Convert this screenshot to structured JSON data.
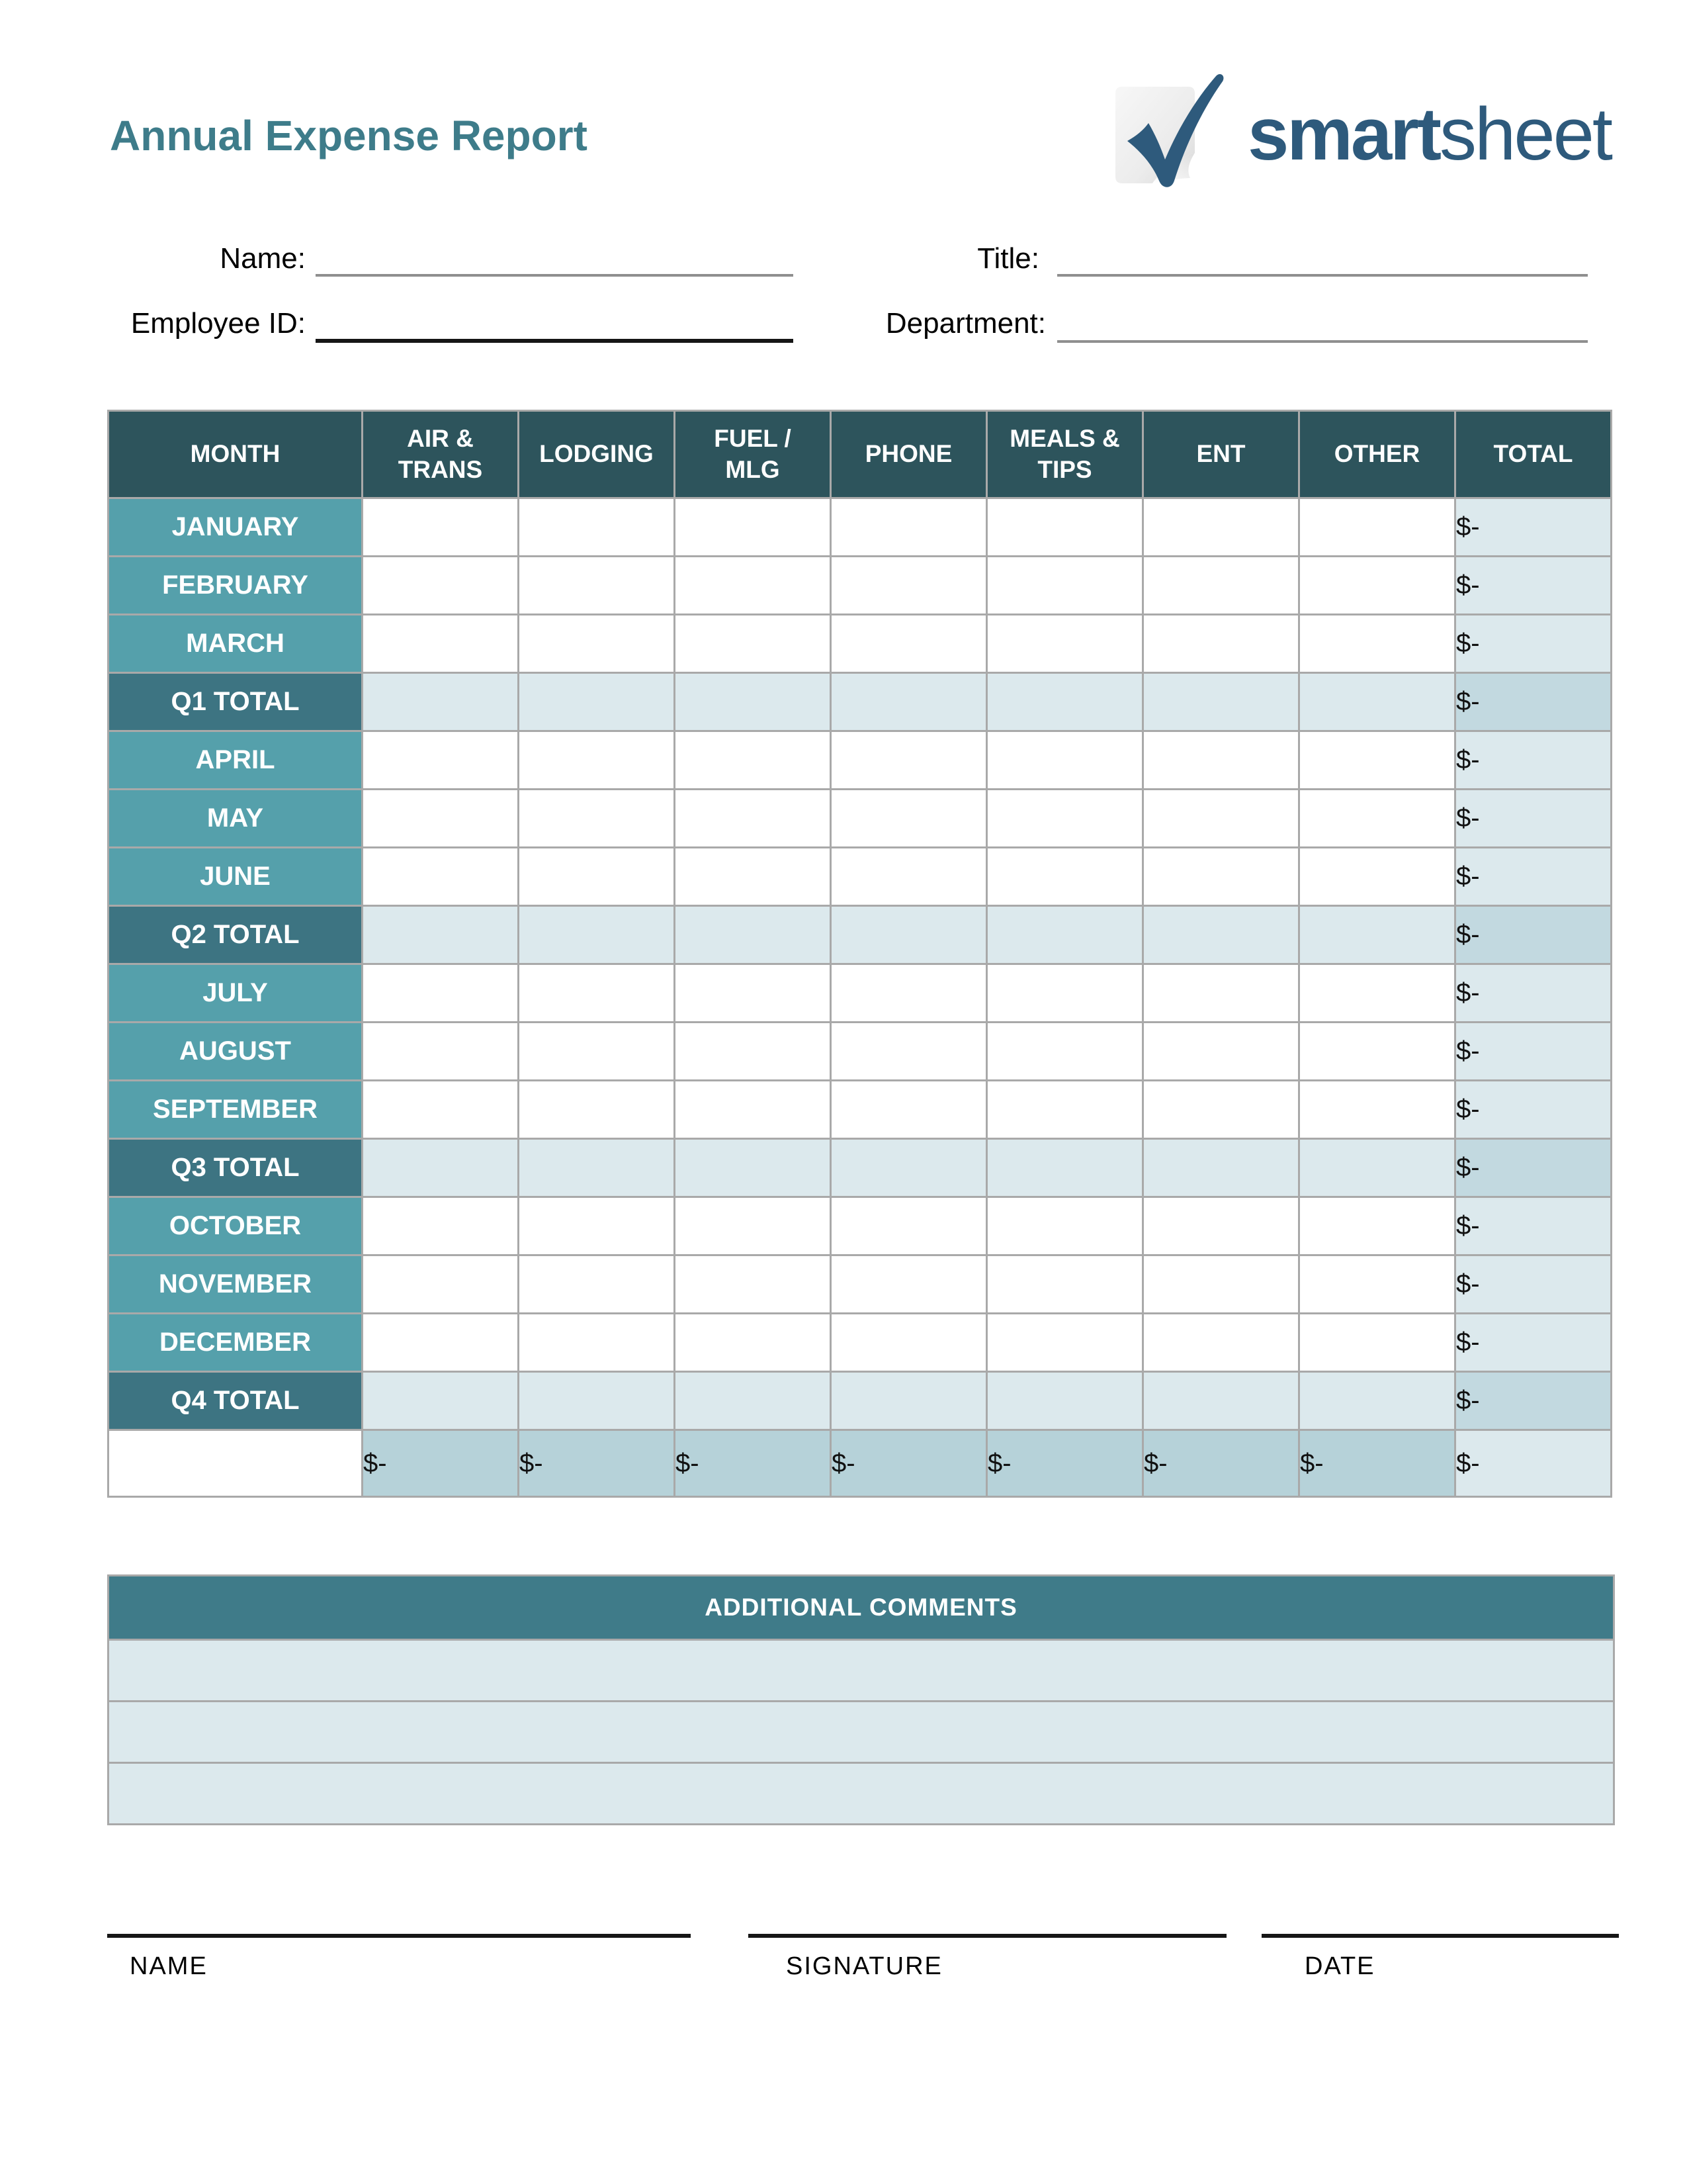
{
  "colors": {
    "title_color": "#3e7c8a",
    "brand_color": "#2e5a7c",
    "header_bg": "#2d545c",
    "month_bg": "#55a0ab",
    "qlabel_bg": "#3d7482",
    "light_bg": "#dce9ed",
    "qtotal_bg": "#c2d9e0",
    "grand_bg": "#b6d2d9",
    "comments_bg": "#3f7b89"
  },
  "header": {
    "title": "Annual Expense Report",
    "logo": {
      "word_bold": "smart",
      "word_light": "sheet"
    }
  },
  "form": {
    "name_label": "Name:",
    "name_value": "",
    "title_label": "Title:",
    "title_value": "",
    "employee_id_label": "Employee ID:",
    "employee_id_value": "",
    "department_label": "Department:",
    "department_value": ""
  },
  "table": {
    "columns": [
      "MONTH",
      "AIR &\nTRANS",
      "LODGING",
      "FUEL /\nMLG",
      "PHONE",
      "MEALS &\nTIPS",
      "ENT",
      "OTHER",
      "TOTAL"
    ],
    "rows": [
      {
        "label": "JANUARY",
        "type": "month",
        "total": "$-"
      },
      {
        "label": "FEBRUARY",
        "type": "month",
        "total": "$-"
      },
      {
        "label": "MARCH",
        "type": "month",
        "total": "$-"
      },
      {
        "label": "Q1 TOTAL",
        "type": "quarter",
        "total": "$-"
      },
      {
        "label": "APRIL",
        "type": "month",
        "total": "$-"
      },
      {
        "label": "MAY",
        "type": "month",
        "total": "$-"
      },
      {
        "label": "JUNE",
        "type": "month",
        "total": "$-"
      },
      {
        "label": "Q2 TOTAL",
        "type": "quarter",
        "total": "$-"
      },
      {
        "label": "JULY",
        "type": "month",
        "total": "$-"
      },
      {
        "label": "AUGUST",
        "type": "month",
        "total": "$-"
      },
      {
        "label": "SEPTEMBER",
        "type": "month",
        "total": "$-"
      },
      {
        "label": "Q3 TOTAL",
        "type": "quarter",
        "total": "$-"
      },
      {
        "label": "OCTOBER",
        "type": "month",
        "total": "$-"
      },
      {
        "label": "NOVEMBER",
        "type": "month",
        "total": "$-"
      },
      {
        "label": "DECEMBER",
        "type": "month",
        "total": "$-"
      },
      {
        "label": "Q4 TOTAL",
        "type": "quarter",
        "total": "$-"
      }
    ],
    "annual_total_row": {
      "label": "",
      "values": [
        "$-",
        "$-",
        "$-",
        "$-",
        "$-",
        "$-",
        "$-"
      ],
      "total": "$-"
    }
  },
  "comments": {
    "header": "ADDITIONAL COMMENTS",
    "row_count": 3
  },
  "signature": {
    "name_label": "NAME",
    "signature_label": "SIGNATURE",
    "date_label": "DATE"
  }
}
